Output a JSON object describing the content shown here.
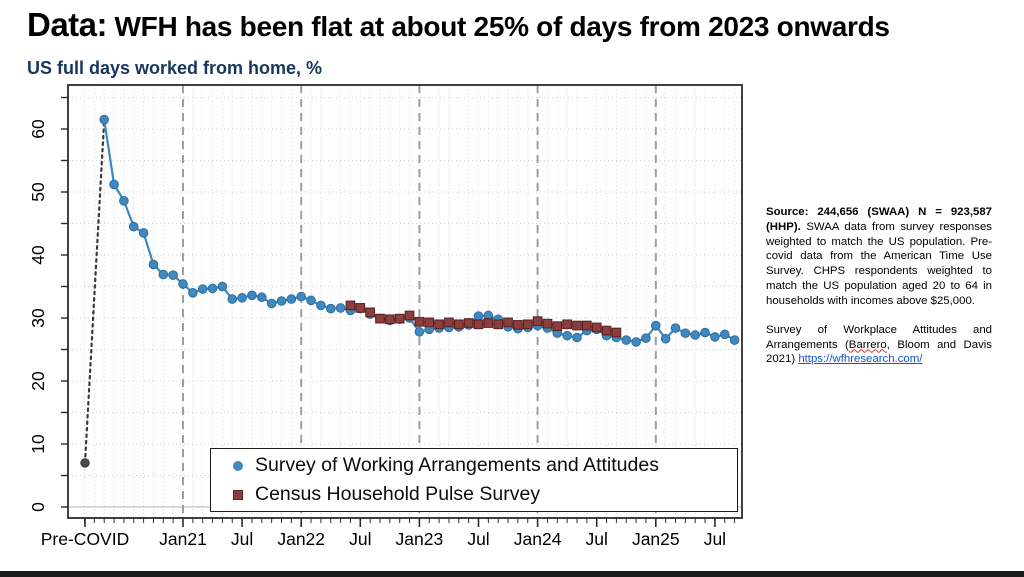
{
  "slide": {
    "title_prefix": "Data:",
    "title_rest": " WFH has been flat at about 25% of days from 2023 onwards",
    "subtitle": "US full days worked from home, %"
  },
  "side_panel": {
    "para1_bold": "Source: 244,656 (SWAA) N = 923,587 (HHP).",
    "para1_rest": " SWAA data from survey responses weighted to match the US population. Pre-covid data from the American Time Use Survey. CHPS respondents weighted to match the US population aged 20 to 64 in households with incomes above $25,000.",
    "para2_pre": "Survey of Workplace Attitudes and Arrangements (",
    "para2_word": "Barrero",
    "para2_mid": ", Bloom and Davis 2021) ",
    "para2_link": "https://wfhresearch.com/"
  },
  "chart_data": {
    "type": "line",
    "title": "US full days worked from home, %",
    "xlabel": "",
    "ylabel": "",
    "ylim": [
      0,
      65
    ],
    "y_ticks": [
      0,
      10,
      20,
      30,
      40,
      50,
      60
    ],
    "y_minor_step": 5,
    "grid": "dotted minor grid, dashed vertical lines at each January",
    "legend_position": "inside bottom-right",
    "x_ticks": [
      {
        "label": "Pre-COVID",
        "pre": true
      },
      {
        "label": "Jan21",
        "m": "2021-01"
      },
      {
        "label": "Jul",
        "m": "2021-07"
      },
      {
        "label": "Jan22",
        "m": "2022-01"
      },
      {
        "label": "Jul",
        "m": "2022-07"
      },
      {
        "label": "Jan23",
        "m": "2023-01"
      },
      {
        "label": "Jul",
        "m": "2023-07"
      },
      {
        "label": "Jan24",
        "m": "2024-01"
      },
      {
        "label": "Jul",
        "m": "2024-07"
      },
      {
        "label": "Jan25",
        "m": "2025-01"
      },
      {
        "label": "Jul",
        "m": "2025-07"
      }
    ],
    "precovid_point": {
      "label": "Pre-COVID",
      "value": 7.0,
      "color": "#4d4d4d",
      "connector_style": "dotted"
    },
    "series": [
      {
        "name": "Survey of Working Arrangements and Attitudes",
        "marker": "circle",
        "color": "#3f88c0",
        "edge_color": "#2d6d9e",
        "dates": [
          "2020-05",
          "2020-06",
          "2020-07",
          "2020-08",
          "2020-09",
          "2020-10",
          "2020-11",
          "2020-12",
          "2021-01",
          "2021-02",
          "2021-03",
          "2021-04",
          "2021-05",
          "2021-06",
          "2021-07",
          "2021-08",
          "2021-09",
          "2021-10",
          "2021-11",
          "2021-12",
          "2022-01",
          "2022-02",
          "2022-03",
          "2022-04",
          "2022-05",
          "2022-06",
          "2022-07",
          "2022-08",
          "2022-09",
          "2022-10",
          "2022-11",
          "2022-12",
          "2023-01",
          "2023-02",
          "2023-03",
          "2023-04",
          "2023-05",
          "2023-06",
          "2023-07",
          "2023-08",
          "2023-09",
          "2023-10",
          "2023-11",
          "2023-12",
          "2024-01",
          "2024-02",
          "2024-03",
          "2024-04",
          "2024-05",
          "2024-06",
          "2024-07",
          "2024-08",
          "2024-09",
          "2024-10",
          "2024-11",
          "2024-12",
          "2025-01",
          "2025-02",
          "2025-03",
          "2025-04",
          "2025-05",
          "2025-06",
          "2025-07",
          "2025-08",
          "2025-09"
        ],
        "values": [
          61.5,
          51.2,
          48.6,
          44.5,
          43.5,
          38.5,
          36.9,
          36.8,
          35.4,
          34.0,
          34.6,
          34.7,
          35.0,
          33.0,
          33.2,
          33.6,
          33.3,
          32.3,
          32.7,
          33.0,
          33.4,
          32.8,
          32.0,
          31.5,
          31.6,
          31.2,
          31.5,
          30.6,
          29.9,
          29.6,
          29.8,
          30.0,
          27.8,
          28.2,
          28.4,
          28.5,
          28.6,
          28.9,
          30.3,
          30.4,
          29.8,
          28.6,
          28.3,
          28.5,
          28.8,
          28.4,
          27.6,
          27.2,
          26.9,
          28.0,
          28.2,
          27.2,
          26.9,
          26.5,
          26.2,
          26.8,
          28.8,
          26.7,
          28.4,
          27.6,
          27.3,
          27.7,
          27.0,
          27.4,
          26.5
        ]
      },
      {
        "name": "Census Household Pulse Survey",
        "marker": "square",
        "color": "#8e3d3d",
        "edge_color": "#5a2424",
        "dates": [
          "2022-06",
          "2022-07",
          "2022-08",
          "2022-09",
          "2022-10",
          "2022-11",
          "2022-12",
          "2023-01",
          "2023-02",
          "2023-03",
          "2023-04",
          "2023-05",
          "2023-06",
          "2023-07",
          "2023-08",
          "2023-09",
          "2023-10",
          "2023-11",
          "2023-12",
          "2024-01",
          "2024-02",
          "2024-03",
          "2024-04",
          "2024-05",
          "2024-06",
          "2024-07",
          "2024-08",
          "2024-09"
        ],
        "values": [
          32.0,
          31.6,
          30.9,
          29.9,
          29.8,
          29.9,
          30.4,
          29.4,
          29.3,
          29.0,
          29.3,
          29.0,
          29.2,
          29.0,
          29.2,
          29.0,
          29.3,
          28.9,
          29.0,
          29.5,
          29.1,
          28.7,
          29.0,
          28.8,
          28.8,
          28.5,
          28.0,
          27.7
        ]
      }
    ],
    "colors": {
      "subtitle_navy": "#17365d",
      "grid_dotted": "#cfcfcf",
      "jan_dashed_line": "#9e9e9e",
      "axis": "#2b2b2b",
      "link_blue": "#1155cc"
    }
  }
}
